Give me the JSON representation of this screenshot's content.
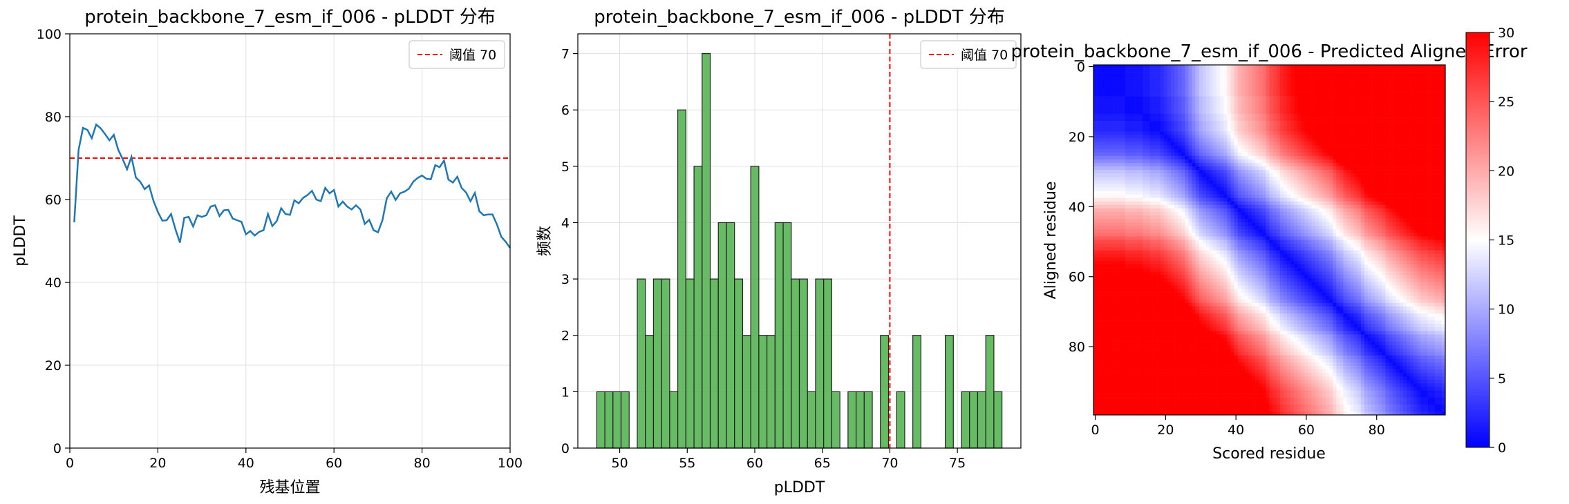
{
  "chart_data": [
    {
      "type": "line",
      "title": "protein_backbone_7_esm_if_006 - pLDDT 分布",
      "xlabel": "残基位置",
      "ylabel": "pLDDT",
      "xlim": [
        0,
        100
      ],
      "ylim": [
        0,
        100
      ],
      "xticks": [
        0,
        20,
        40,
        60,
        80,
        100
      ],
      "yticks": [
        0,
        20,
        40,
        60,
        80,
        100
      ],
      "grid": true,
      "legend_position": "top-right",
      "series": [
        {
          "name": "",
          "color": "#1f77b4",
          "x": [
            1,
            2,
            3,
            4,
            5,
            6,
            7,
            8,
            9,
            10,
            11,
            12,
            13,
            14,
            15,
            16,
            17,
            18,
            19,
            20,
            21,
            22,
            23,
            24,
            25,
            26,
            27,
            28,
            29,
            30,
            31,
            32,
            33,
            34,
            35,
            36,
            37,
            38,
            39,
            40,
            41,
            42,
            43,
            44,
            45,
            46,
            47,
            48,
            49,
            50,
            51,
            52,
            53,
            54,
            55,
            56,
            57,
            58,
            59,
            60,
            61,
            62,
            63,
            64,
            65,
            66,
            67,
            68,
            69,
            70,
            71,
            72,
            73,
            74,
            75,
            76,
            77,
            78,
            79,
            80,
            81,
            82,
            83,
            84,
            85,
            86,
            87,
            88,
            89,
            90,
            91,
            92,
            93,
            94,
            95,
            96,
            97,
            98,
            99,
            100
          ],
          "y": [
            54.5,
            72.0,
            77.3,
            76.8,
            74.8,
            78.1,
            77.2,
            75.8,
            74.3,
            75.6,
            72.0,
            69.8,
            67.3,
            70.3,
            65.3,
            64.3,
            62.5,
            63.4,
            59.7,
            57.0,
            54.9,
            55.0,
            56.5,
            52.8,
            49.6,
            55.6,
            55.8,
            53.5,
            56.2,
            55.8,
            56.2,
            58.3,
            58.6,
            56.0,
            57.4,
            57.5,
            55.4,
            55.0,
            54.6,
            51.6,
            52.4,
            51.3,
            52.2,
            52.6,
            56.5,
            53.6,
            54.8,
            57.9,
            56.5,
            56.3,
            59.8,
            59.1,
            60.4,
            61.1,
            62.1,
            60.0,
            59.6,
            62.8,
            61.5,
            62.3,
            58.3,
            59.5,
            58.3,
            57.6,
            58.6,
            57.6,
            54.1,
            55.1,
            52.6,
            52.1,
            55.0,
            60.3,
            61.9,
            59.9,
            61.5,
            61.9,
            62.6,
            64.3,
            65.2,
            65.8,
            65.0,
            64.9,
            68.3,
            67.8,
            69.4,
            64.8,
            64.1,
            65.5,
            62.8,
            61.7,
            59.6,
            61.6,
            57.2,
            56.2,
            56.4,
            56.4,
            54.0,
            51.0,
            49.8,
            48.3
          ]
        }
      ],
      "reference_line": {
        "label": "阈值 70",
        "value": 70,
        "color": "#ff0000",
        "style": "dashed"
      }
    },
    {
      "type": "bar",
      "title": "protein_backbone_7_esm_if_006 - pLDDT 分布",
      "xlabel": "pLDDT",
      "ylabel": "频数",
      "xlim": [
        46.9,
        79.7
      ],
      "ylim": [
        0,
        7.35
      ],
      "xticks": [
        50,
        55,
        60,
        65,
        70,
        75
      ],
      "yticks": [
        0,
        1,
        2,
        3,
        4,
        5,
        6,
        7
      ],
      "grid": true,
      "legend_position": "top-right",
      "bar_color": "#4daf4a",
      "bin_start": 48.3,
      "bin_width": 0.6,
      "values": [
        1,
        1,
        1,
        1,
        0,
        3,
        2,
        3,
        3,
        1,
        6,
        3,
        5,
        7,
        3,
        4,
        4,
        3,
        2,
        5,
        2,
        2,
        4,
        4,
        3,
        3,
        1,
        3,
        3,
        1,
        0,
        1,
        1,
        1,
        0,
        2,
        0,
        1,
        0,
        2,
        0,
        0,
        0,
        2,
        0,
        1,
        1,
        1,
        2,
        1
      ],
      "reference_line": {
        "label": "阈值 70",
        "value": 70,
        "color": "#ff0000",
        "style": "dashed"
      }
    },
    {
      "type": "heatmap",
      "title": "protein_backbone_7_esm_if_006 - Predicted Aligned Error",
      "xlabel": "Scored residue",
      "ylabel": "Aligned residue",
      "xticks": [
        0,
        20,
        40,
        60,
        80
      ],
      "yticks": [
        0,
        20,
        40,
        60,
        80
      ],
      "n": 100,
      "colormap": "bwr",
      "colorbar": {
        "min": 0,
        "max": 30,
        "ticks": [
          0,
          5,
          10,
          15,
          20,
          25,
          30
        ]
      },
      "diagonal_profile": [
        0,
        0,
        0,
        0,
        0,
        0,
        0,
        0,
        0,
        1,
        1,
        1,
        1,
        1,
        2,
        2,
        3,
        3,
        3,
        4,
        5,
        6,
        7,
        8,
        9,
        10,
        12,
        14,
        16,
        18,
        20,
        21,
        22,
        23,
        24,
        25,
        26,
        27,
        29,
        31,
        33,
        35,
        36,
        37,
        38,
        39,
        40,
        41,
        42,
        44,
        46,
        47,
        48,
        50,
        51,
        52,
        53,
        54,
        55,
        56,
        57,
        58,
        59,
        60,
        61,
        62,
        63,
        64,
        66,
        68,
        69,
        71,
        72,
        73,
        74,
        75,
        77,
        79,
        80,
        81,
        82,
        83,
        84,
        86,
        87,
        88,
        89,
        90,
        91,
        92,
        93,
        94,
        95,
        96,
        96,
        97,
        97,
        98,
        98,
        99
      ]
    }
  ]
}
